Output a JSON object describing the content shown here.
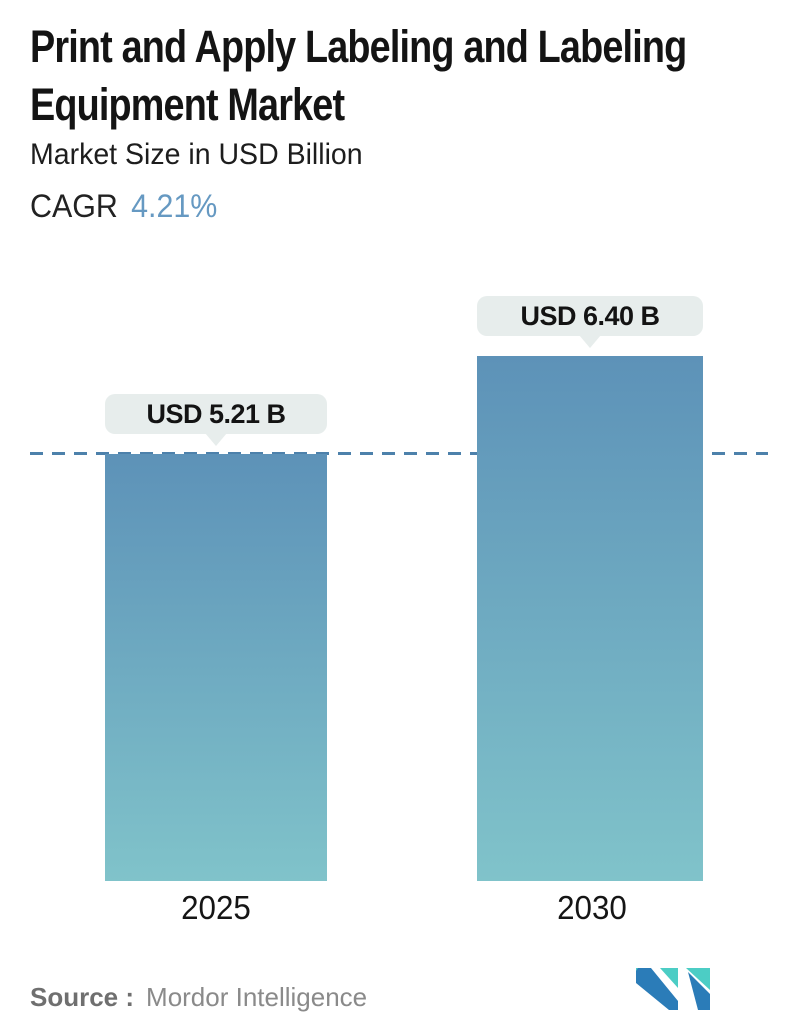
{
  "header": {
    "title_line1": "Print and Apply Labeling and Labeling",
    "title_line2": "Equipment Market",
    "subtitle": "Market Size in USD Billion",
    "cagr_label": "CAGR",
    "cagr_value": "4.21%"
  },
  "chart_data": {
    "type": "bar",
    "categories": [
      "2025",
      "2030"
    ],
    "values": [
      5.21,
      6.4
    ],
    "value_labels": [
      "USD 5.21 B",
      "USD 6.40 B"
    ],
    "title": "Print and Apply Labeling and Labeling Equipment Market",
    "subtitle": "Market Size in USD Billion",
    "unit": "USD Billion",
    "ylim": [
      0,
      6.4
    ],
    "grid": false,
    "legend": false,
    "reference_line": {
      "style": "dashed",
      "at_value": 5.21
    },
    "colors": {
      "bar_gradient_top": "#5d92b8",
      "bar_gradient_bottom": "#80c3ca",
      "dash": "#4d81ab",
      "label_box": "#e7edec"
    }
  },
  "footer": {
    "source_label": "Source :",
    "source_value": "Mordor Intelligence",
    "logo_name": "mordor-intelligence-logo",
    "logo_colors": {
      "blue": "#2b7cb8",
      "teal": "#4ccdc5"
    }
  },
  "colors": {
    "accent_blue": "#6699c2",
    "title_text": "#141414",
    "source_gray": "#7a7a7a"
  }
}
